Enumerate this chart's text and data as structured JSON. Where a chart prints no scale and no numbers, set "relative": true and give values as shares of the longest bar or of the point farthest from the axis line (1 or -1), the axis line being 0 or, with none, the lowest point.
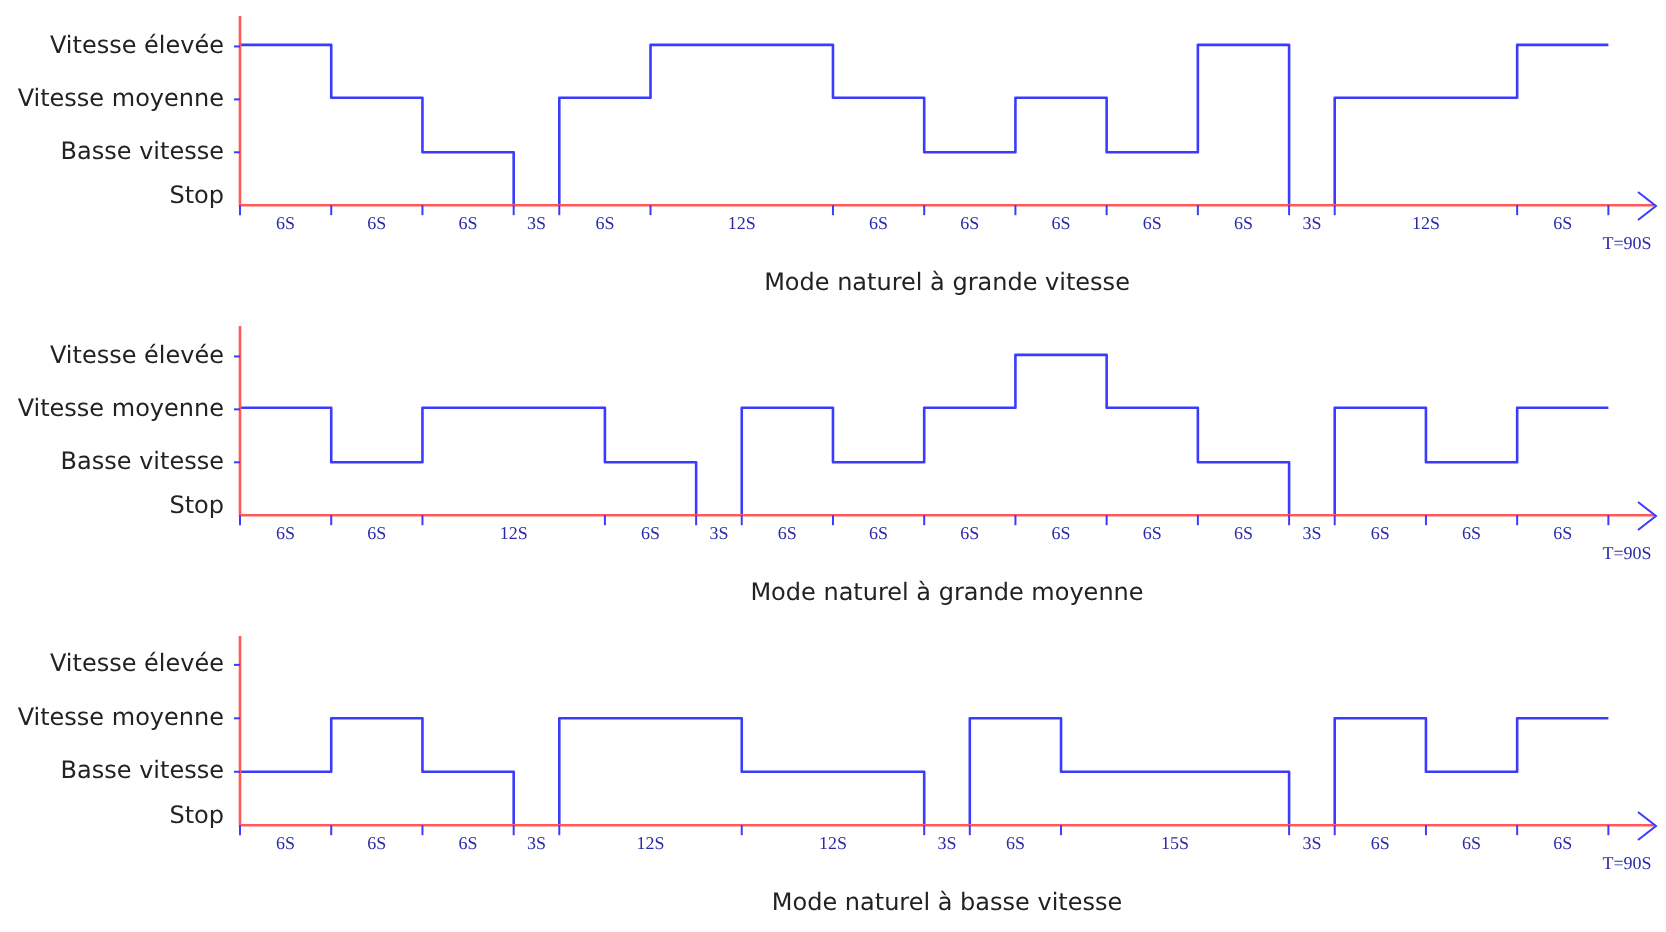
{
  "chart_data": [
    {
      "type": "step",
      "relative": true,
      "title": "Mode naturel à grande vitesse",
      "color": "#3b3bff",
      "categories": [
        null,
        null,
        null,
        null,
        null,
        null,
        null,
        null,
        null,
        null,
        null,
        null,
        null,
        null,
        null,
        null,
        null,
        null,
        null,
        null,
        null,
        null,
        null,
        null,
        null,
        null,
        null,
        null,
        null,
        null,
        null
      ],
      "values": [
        1,
        1,
        0.67,
        0.67,
        0.33,
        0.33,
        0,
        0.67,
        0.67,
        1,
        1,
        1,
        1,
        0.67,
        0.67,
        0.33,
        0.33,
        0.67,
        0.67,
        0.33,
        0.33,
        1,
        1,
        0,
        0.67,
        0.67,
        0.67,
        0.67,
        1,
        1,
        1
      ],
      "annotations": [
        "Stop",
        "Basse vitesse",
        "Vitesse moyenne",
        "Vitesse élevée",
        "6S",
        "6S",
        "6S",
        "3S",
        "6S",
        "12S",
        "6S",
        "6S",
        "6S",
        "6S",
        "6S",
        "3S",
        "12S",
        "6S",
        "T=90S"
      ]
    },
    {
      "type": "step",
      "relative": true,
      "title": "Mode naturel à grande moyenne",
      "color": "#3b3bff",
      "categories": [
        null,
        null,
        null,
        null,
        null,
        null,
        null,
        null,
        null,
        null,
        null,
        null,
        null,
        null,
        null,
        null,
        null,
        null,
        null,
        null,
        null,
        null,
        null,
        null,
        null,
        null,
        null,
        null,
        null,
        null,
        null
      ],
      "values": [
        0.67,
        0.67,
        0.33,
        0.33,
        0.67,
        0.67,
        0.67,
        0.67,
        0.33,
        0.33,
        0,
        0.67,
        0.67,
        0.33,
        0.33,
        0.67,
        0.67,
        1,
        1,
        0.67,
        0.67,
        0.33,
        0.33,
        0,
        0.67,
        0.67,
        0.33,
        0.33,
        0.67,
        0.67,
        0.67
      ],
      "annotations": [
        "Stop",
        "Basse vitesse",
        "Vitesse moyenne",
        "Vitesse élevée",
        "6S",
        "6S",
        "12S",
        "6S",
        "3S",
        "6S",
        "6S",
        "6S",
        "6S",
        "6S",
        "6S",
        "3S",
        "6S",
        "6S",
        "6S",
        "T=90S"
      ]
    },
    {
      "type": "step",
      "relative": true,
      "title": "Mode naturel à basse vitesse",
      "color": "#3b3bff",
      "categories": [
        null,
        null,
        null,
        null,
        null,
        null,
        null,
        null,
        null,
        null,
        null,
        null,
        null,
        null,
        null,
        null,
        null,
        null,
        null,
        null,
        null,
        null,
        null,
        null,
        null,
        null,
        null,
        null,
        null,
        null,
        null
      ],
      "values": [
        0.5,
        0.5,
        1,
        1,
        0.5,
        0.5,
        0,
        1,
        1,
        1,
        1,
        0.5,
        0.5,
        0.5,
        0.5,
        0,
        1,
        1,
        0.5,
        0.5,
        0.5,
        0.5,
        0.5,
        0,
        1,
        1,
        0.5,
        0.5,
        1,
        1,
        1
      ],
      "annotations": [
        "Stop",
        "Basse vitesse",
        "Vitesse moyenne",
        "Vitesse élevée",
        "6S",
        "6S",
        "6S",
        "3S",
        "12S",
        "12S",
        "3S",
        "6S",
        "15S",
        "3S",
        "6S",
        "6S",
        "6S",
        "T=90S"
      ]
    }
  ]
}
